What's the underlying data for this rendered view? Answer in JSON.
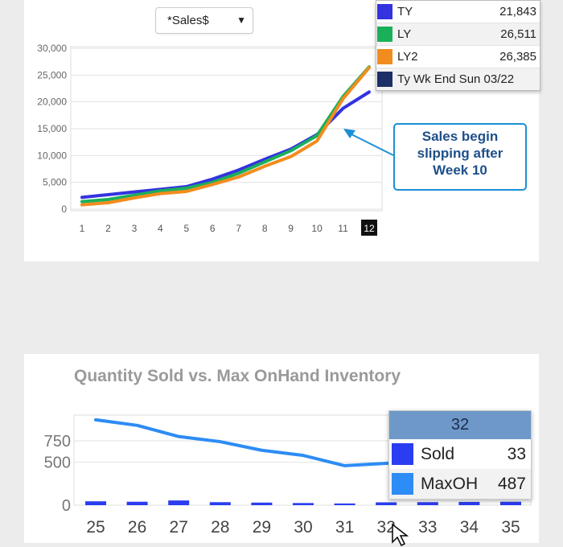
{
  "top_panel": {
    "select_value": "*Sales$",
    "tooltip": {
      "rows": [
        {
          "label": "TY",
          "value": "21,843",
          "color": "#3333e0"
        },
        {
          "label": "LY",
          "value": "26,511",
          "color": "#1ab05a"
        },
        {
          "label": "LY2",
          "value": "26,385",
          "color": "#f28c1e"
        },
        {
          "label": "Ty Wk End Sun 03/22",
          "value": "",
          "color": "#1c2f66"
        }
      ]
    },
    "callout_lines": [
      "Sales begin",
      "slipping after",
      "Week 10"
    ]
  },
  "bottom_panel": {
    "title": "Quantity Sold vs. Max OnHand Inventory",
    "tooltip": {
      "header": "32",
      "rows": [
        {
          "label": "Sold",
          "value": "33",
          "color": "#2a3df0"
        },
        {
          "label": "MaxOH",
          "value": "487",
          "color": "#2d8cf5"
        }
      ]
    }
  },
  "chart_data": [
    {
      "type": "line",
      "title": "",
      "xlabel": "",
      "ylabel": "",
      "x": [
        1,
        2,
        3,
        4,
        5,
        6,
        7,
        8,
        9,
        10,
        11,
        12
      ],
      "highlighted_x": 12,
      "ylim": [
        0,
        30000
      ],
      "yticks": [
        0,
        5000,
        10000,
        15000,
        20000,
        25000,
        30000
      ],
      "ytick_labels": [
        "0",
        "5,000",
        "10,000",
        "15,000",
        "20,000",
        "25,000",
        "30,000"
      ],
      "grid": true,
      "series": [
        {
          "name": "TY",
          "color": "#3333e0",
          "values": [
            2200,
            2700,
            3200,
            3700,
            4200,
            5600,
            7300,
            9300,
            11200,
            13900,
            18800,
            21843
          ]
        },
        {
          "name": "LY",
          "color": "#1ab05a",
          "values": [
            1400,
            1800,
            2600,
            3400,
            3900,
            5000,
            6700,
            8800,
            10900,
            13700,
            21000,
            26511
          ]
        },
        {
          "name": "LY2",
          "color": "#f28c1e",
          "values": [
            800,
            1200,
            2100,
            2900,
            3300,
            4600,
            6000,
            8000,
            9800,
            12700,
            20600,
            26385
          ]
        }
      ]
    },
    {
      "type": "bar",
      "title": "Quantity Sold vs. Max OnHand Inventory",
      "xlabel": "",
      "ylabel": "",
      "categories": [
        "25",
        "26",
        "27",
        "28",
        "29",
        "30",
        "31",
        "32",
        "33",
        "34",
        "35"
      ],
      "ylim": [
        0,
        1050
      ],
      "yticks": [
        0,
        500,
        750
      ],
      "ytick_labels": [
        "0",
        "500",
        "750"
      ],
      "grid": true,
      "series": [
        {
          "name": "Sold",
          "type": "bar",
          "color": "#2a3df0",
          "values": [
            45,
            40,
            55,
            35,
            30,
            25,
            20,
            33,
            35,
            38,
            40
          ]
        },
        {
          "name": "MaxOH",
          "type": "line",
          "color": "#2d8cf5",
          "values": [
            995,
            930,
            800,
            740,
            640,
            580,
            460,
            487,
            520,
            560,
            600
          ]
        }
      ]
    }
  ]
}
